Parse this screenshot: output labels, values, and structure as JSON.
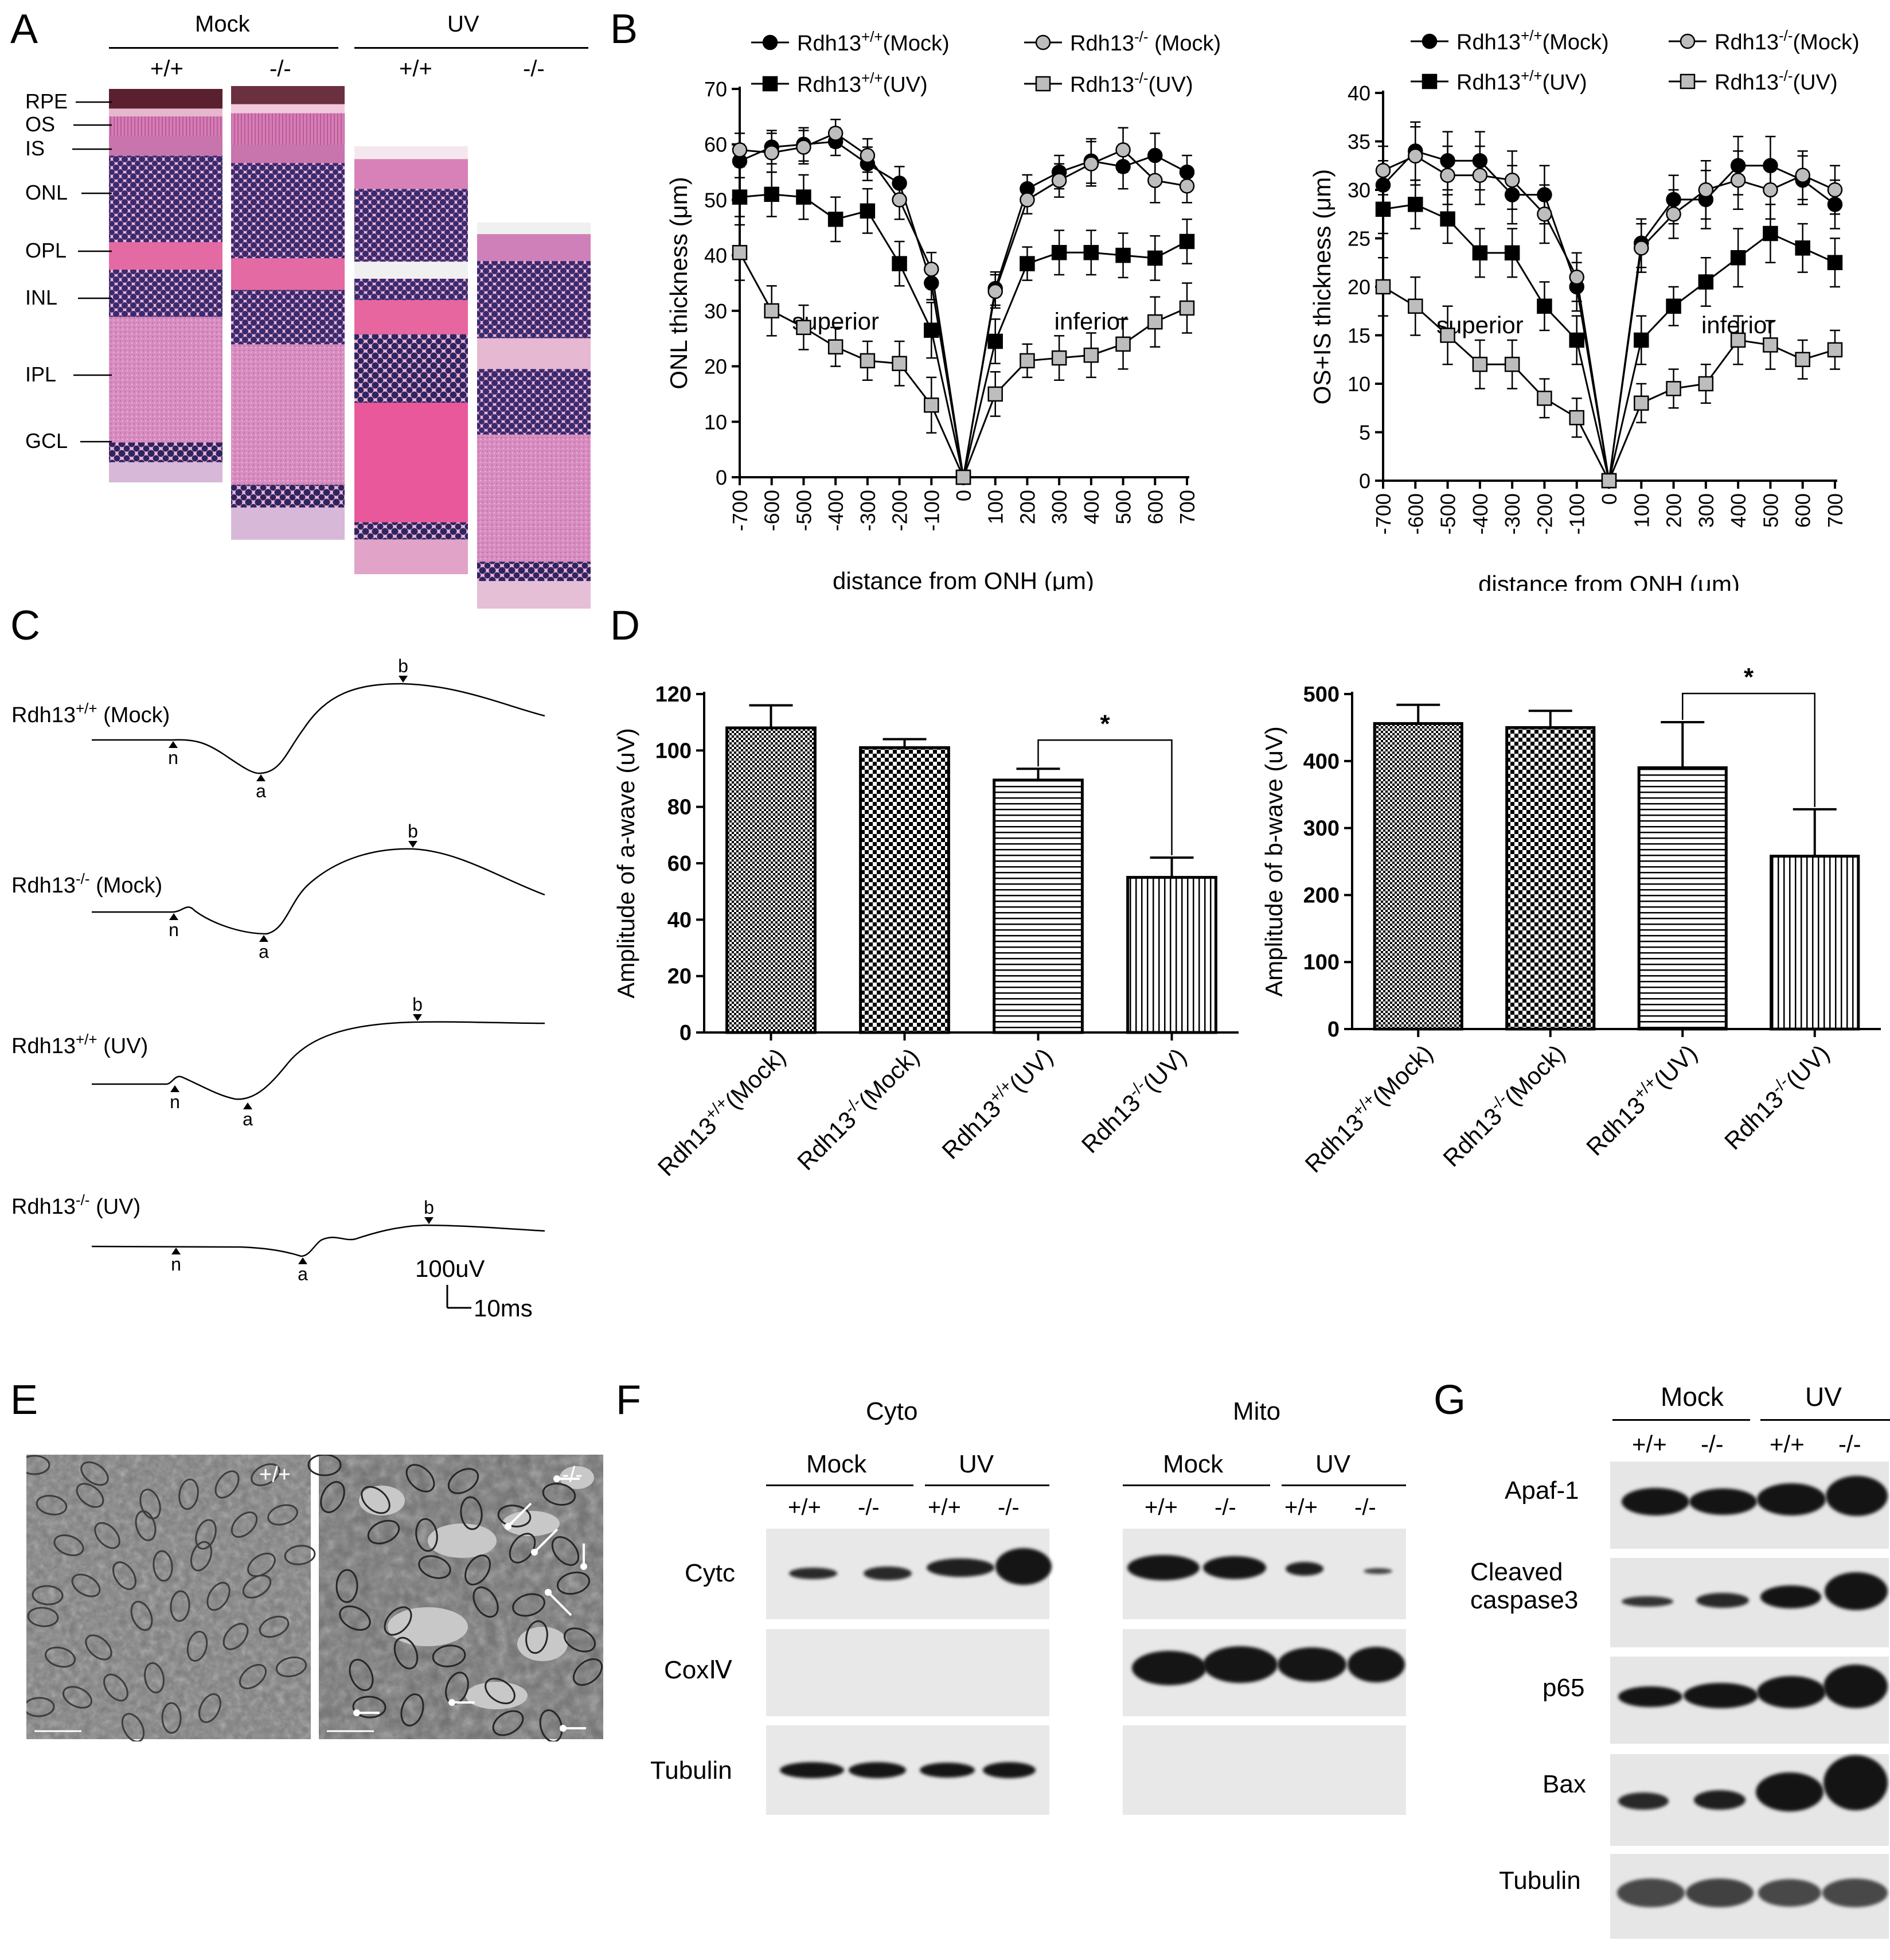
{
  "panels": {
    "A": {
      "letter": "A",
      "group_labels": [
        "Mock",
        "UV"
      ],
      "genotype_labels": [
        "+/+",
        "-/-",
        "+/+",
        "-/-"
      ],
      "layer_labels": [
        "RPE",
        "OS",
        "IS",
        "ONL",
        "OPL",
        "INL",
        "IPL",
        "GCL"
      ]
    },
    "B": {
      "letter": "B"
    },
    "C": {
      "letter": "C",
      "trace_labels": [
        {
          "base": "Rdh13",
          "sup": "+/+",
          "suffix": " (Mock)"
        },
        {
          "base": "Rdh13",
          "sup": "-/-",
          "suffix": " (Mock)"
        },
        {
          "base": "Rdh13",
          "sup": "+/+",
          "suffix": " (UV)"
        },
        {
          "base": "Rdh13",
          "sup": "-/-",
          "suffix": " (UV)"
        }
      ],
      "marker_labels": [
        "n",
        "a",
        "b"
      ],
      "scale_amplitude": "100uV",
      "scale_time": "10ms"
    },
    "D": {
      "letter": "D"
    },
    "E": {
      "letter": "E",
      "image_labels": [
        "+/+",
        "-/-"
      ]
    },
    "F": {
      "letter": "F",
      "fractions": [
        "Cyto",
        "Mito"
      ],
      "group_labels": [
        "Mock",
        "UV"
      ],
      "lane_labels": [
        "+/+",
        "-/-",
        "+/+",
        "-/-"
      ],
      "row_labels": [
        "Cytc",
        "CoxⅣ",
        "Tubulin"
      ]
    },
    "G": {
      "letter": "G",
      "group_labels": [
        "Mock",
        "UV"
      ],
      "lane_labels": [
        "+/+",
        "-/-",
        "+/+",
        "-/-"
      ],
      "row_labels": [
        "Apaf-1",
        "Cleaved\ncaspase3",
        "p65",
        "Bax",
        "Tubulin"
      ]
    }
  },
  "chart_data": [
    {
      "id": "B-left",
      "type": "line",
      "xlabel": "distance from ONH (μm)",
      "ylabel": "ONL thickness (μm)",
      "ylim": [
        0,
        70
      ],
      "yticks": [
        0,
        10,
        20,
        30,
        40,
        50,
        60,
        70
      ],
      "x": [
        -700,
        -600,
        -500,
        -400,
        -300,
        -200,
        -100,
        0,
        100,
        200,
        300,
        400,
        500,
        600,
        700
      ],
      "region_labels": [
        "superior",
        "inferior"
      ],
      "series": [
        {
          "name": "Rdh13+/+(Mock)",
          "legend": {
            "base": "Rdh13",
            "sup": "+/+",
            "suffix": "(Mock)"
          },
          "marker": "circle",
          "fill": "#000000",
          "values": [
            57,
            59.5,
            60,
            60.5,
            56.5,
            53,
            35,
            0,
            34,
            52,
            55,
            57,
            56,
            58,
            55
          ],
          "errors": [
            3,
            3,
            3,
            2.5,
            3,
            3,
            3,
            0,
            3,
            2.5,
            3,
            4,
            4,
            4,
            3
          ]
        },
        {
          "name": "Rdh13-/- (Mock)",
          "legend": {
            "base": "Rdh13",
            "sup": "-/-",
            "suffix": " (Mock)"
          },
          "marker": "circle",
          "fill": "#bdbdbd",
          "values": [
            59,
            58.5,
            59.5,
            62,
            58,
            50,
            37.5,
            0,
            33.5,
            50,
            53.5,
            56.5,
            59,
            53.5,
            52.5
          ],
          "errors": [
            3,
            3.5,
            3,
            2.5,
            3,
            3.5,
            3,
            0,
            3,
            2.5,
            3,
            4,
            4,
            4,
            3
          ]
        },
        {
          "name": "Rdh13+/+(UV)",
          "legend": {
            "base": "Rdh13",
            "sup": "+/+",
            "suffix": "(UV)"
          },
          "marker": "square",
          "fill": "#000000",
          "values": [
            50.5,
            51,
            50.5,
            46.5,
            48,
            38.5,
            26.5,
            0,
            24.5,
            38.5,
            40.5,
            40.5,
            40,
            39.5,
            42.5
          ],
          "errors": [
            3.5,
            4,
            4,
            4,
            4,
            4,
            5,
            0,
            4,
            3,
            4,
            4,
            4,
            4,
            4
          ]
        },
        {
          "name": "Rdh13-/-(UV)",
          "legend": {
            "base": "Rdh13",
            "sup": "-/-",
            "suffix": "(UV)"
          },
          "marker": "square",
          "fill": "#bdbdbd",
          "values": [
            40.5,
            30,
            27,
            23.5,
            21,
            20.5,
            13,
            0,
            15,
            21,
            21.5,
            22,
            24,
            28,
            30.5
          ],
          "errors": [
            5,
            4.5,
            4,
            3.5,
            3.5,
            4,
            5,
            0,
            4,
            3,
            4,
            4,
            4.5,
            4.5,
            4.5
          ]
        }
      ]
    },
    {
      "id": "B-right",
      "type": "line",
      "xlabel": "distance from ONH (μm)",
      "ylabel": "OS+IS thickness (μm)",
      "ylim": [
        0,
        40
      ],
      "yticks": [
        0,
        5,
        10,
        15,
        20,
        25,
        30,
        35,
        40
      ],
      "x": [
        -700,
        -600,
        -500,
        -400,
        -300,
        -200,
        -100,
        0,
        100,
        200,
        300,
        400,
        500,
        600,
        700
      ],
      "region_labels": [
        "superior",
        "inferior"
      ],
      "series": [
        {
          "name": "Rdh13+/+(Mock)",
          "legend": {
            "base": "Rdh13",
            "sup": "+/+",
            "suffix": "(Mock)"
          },
          "marker": "circle",
          "fill": "#000000",
          "values": [
            30.5,
            34,
            33,
            33,
            29.5,
            29.5,
            20,
            0,
            24.5,
            29,
            29,
            32.5,
            32.5,
            31,
            28.5
          ],
          "errors": [
            2.5,
            3,
            3,
            3,
            3,
            3,
            2.5,
            0,
            2.5,
            2.5,
            3,
            3,
            3,
            2.5,
            2.5
          ]
        },
        {
          "name": "Rdh13-/-(Mock)",
          "legend": {
            "base": "Rdh13",
            "sup": "-/-",
            "suffix": "(Mock)"
          },
          "marker": "circle",
          "fill": "#bdbdbd",
          "values": [
            32,
            33.5,
            31.5,
            31.5,
            31,
            27.5,
            21,
            0,
            24,
            27.5,
            30,
            31,
            30,
            31.5,
            30
          ],
          "errors": [
            2.5,
            3,
            3,
            3,
            3,
            3,
            2.5,
            0,
            2.5,
            2.5,
            3,
            3,
            3,
            2.5,
            2.5
          ]
        },
        {
          "name": "Rdh13+/+(UV)",
          "legend": {
            "base": "Rdh13",
            "sup": "+/+",
            "suffix": "(UV)"
          },
          "marker": "square",
          "fill": "#000000",
          "values": [
            28,
            28.5,
            27,
            23.5,
            23.5,
            18,
            14.5,
            0,
            14.5,
            18,
            20.5,
            23,
            25.5,
            24,
            22.5
          ],
          "errors": [
            2.5,
            2.5,
            2.5,
            2.5,
            2.5,
            2.5,
            2.5,
            0,
            2.5,
            2,
            2.5,
            3,
            3,
            2.5,
            2.5
          ]
        },
        {
          "name": "Rdh13-/-(UV)",
          "legend": {
            "base": "Rdh13",
            "sup": "-/-",
            "suffix": "(UV)"
          },
          "marker": "square",
          "fill": "#bdbdbd",
          "values": [
            20,
            18,
            15,
            12,
            12,
            8.5,
            6.5,
            0,
            8,
            9.5,
            10,
            14.5,
            14,
            12.5,
            13.5
          ],
          "errors": [
            3,
            3,
            3,
            2.5,
            2.5,
            2,
            2,
            0,
            2,
            2,
            2,
            2.5,
            2.5,
            2,
            2
          ]
        }
      ]
    },
    {
      "id": "D-left",
      "type": "bar",
      "ylabel": "Amplitude of a-wave (uV)",
      "ylim": [
        0,
        120
      ],
      "yticks": [
        0,
        20,
        40,
        60,
        80,
        100,
        120
      ],
      "categories": [
        {
          "base": "Rdh13",
          "sup": "+/+",
          "suffix": "(Mock)"
        },
        {
          "base": "Rdh13",
          "sup": "-/-",
          "suffix": "(Mock)"
        },
        {
          "base": "Rdh13",
          "sup": "+/+",
          "suffix": "(UV)"
        },
        {
          "base": "Rdh13",
          "sup": "-/-",
          "suffix": "(UV)"
        }
      ],
      "values": [
        108,
        101,
        89.5,
        55
      ],
      "errors": [
        8,
        3,
        4,
        7
      ],
      "patterns": [
        "checker-fine",
        "checker-coarse",
        "horizontal",
        "vertical"
      ],
      "significance": {
        "between": [
          2,
          3
        ],
        "label": "*"
      }
    },
    {
      "id": "D-right",
      "type": "bar",
      "ylabel": "Amplitude of b-wave (uV)",
      "ylim": [
        0,
        500
      ],
      "yticks": [
        0,
        100,
        200,
        300,
        400,
        500
      ],
      "categories": [
        {
          "base": "Rdh13",
          "sup": "+/+",
          "suffix": "(Mock)"
        },
        {
          "base": "Rdh13",
          "sup": "-/-",
          "suffix": "(Mock)"
        },
        {
          "base": "Rdh13",
          "sup": "+/+",
          "suffix": "(UV)"
        },
        {
          "base": "Rdh13",
          "sup": "-/-",
          "suffix": "(UV)"
        }
      ],
      "values": [
        456,
        450,
        390,
        258
      ],
      "errors": [
        28,
        25,
        68,
        70
      ],
      "patterns": [
        "checker-fine",
        "checker-coarse",
        "horizontal",
        "vertical"
      ],
      "significance": {
        "between": [
          2,
          3
        ],
        "label": "*"
      }
    }
  ],
  "colors": {
    "he_pink": "#e06fa8",
    "he_pale": "#f0b3d4",
    "nucleus": "#3a2a6e",
    "blot_bg": "#e6e6e6",
    "band": "#1a1a1a",
    "tem_bg": "#8a8a8a"
  }
}
